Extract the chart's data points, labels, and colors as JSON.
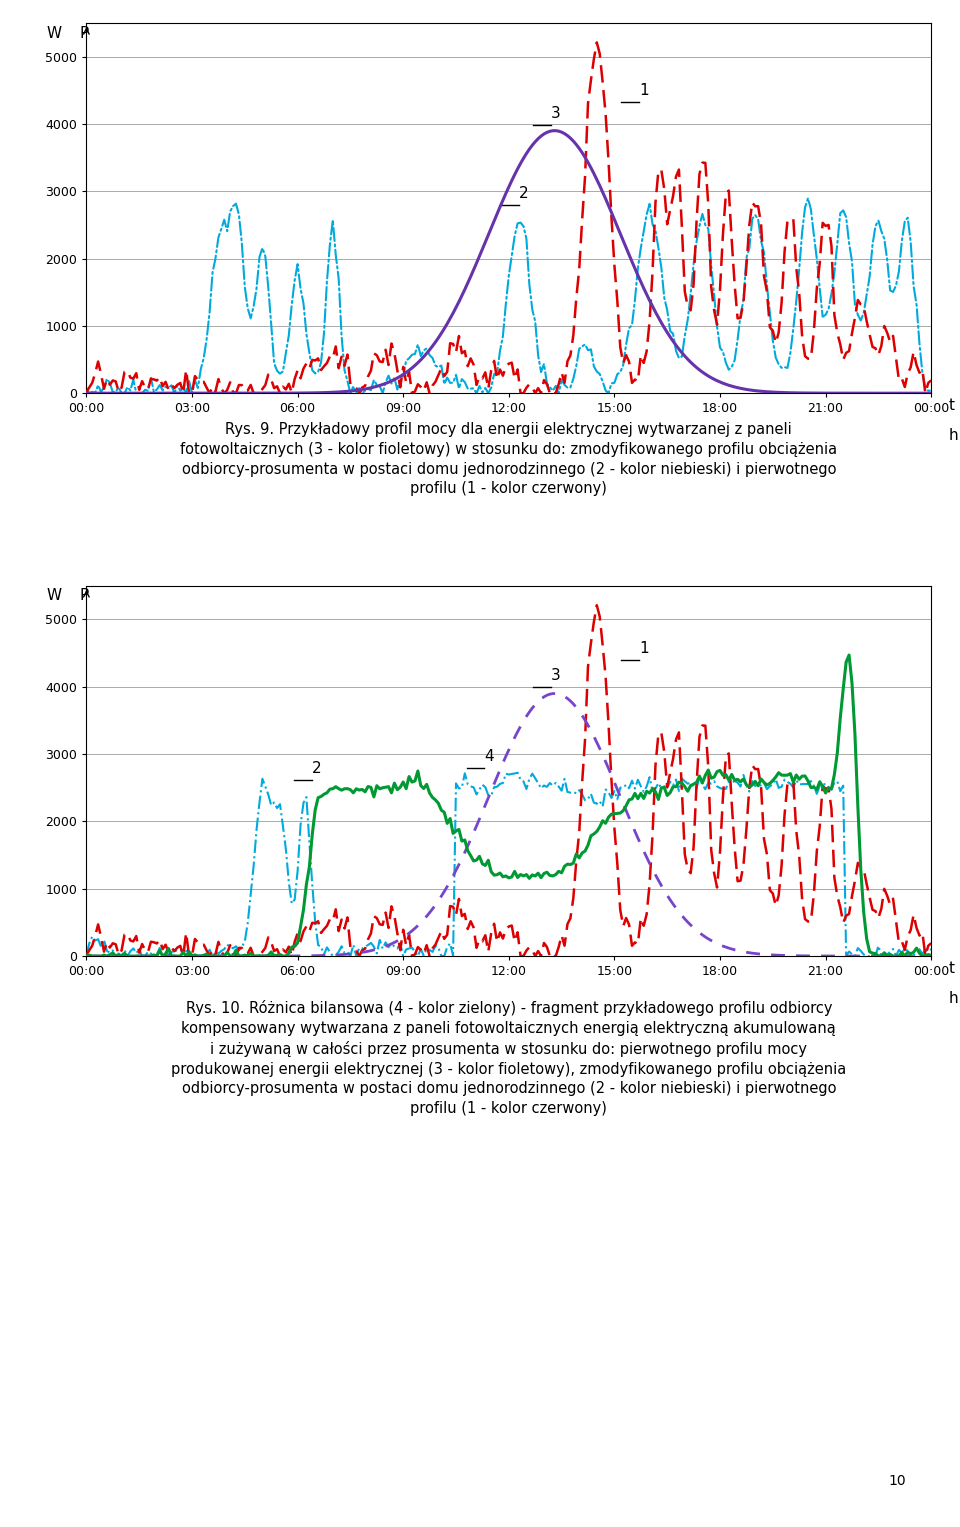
{
  "chart1": {
    "ylim": [
      0,
      5500
    ],
    "yticks": [
      0,
      1000,
      2000,
      3000,
      4000,
      5000
    ],
    "xtick_labels": [
      "00:00",
      "03:00",
      "06:00",
      "09:00",
      "12:00",
      "15:00",
      "18:00",
      "21:00",
      "00:00"
    ],
    "line1_color": "#dd0000",
    "line2_color": "#00aadd",
    "line3_color": "#6633aa"
  },
  "chart2": {
    "ylim": [
      0,
      5500
    ],
    "yticks": [
      0,
      1000,
      2000,
      3000,
      4000,
      5000
    ],
    "xtick_labels": [
      "00:00",
      "03:00",
      "06:00",
      "09:00",
      "12:00",
      "15:00",
      "18:00",
      "21:00",
      "00:00"
    ],
    "line1_color": "#dd0000",
    "line2_color": "#00aadd",
    "line3_color": "#7744cc",
    "line4_color": "#009933"
  },
  "caption1": "Rys. 9. Przykładowy profil mocy dla energii elektrycznej wytwarzanej z paneli\nfotowoltaicznych (3 - kolor fioletowy) w stosunku do: zmodyfikowanego profilu obciążenia\nodbiorcy-prosumenta w postaci domu jednorodzinnego (2 - kolor niebieski) i pierwotnego\nprofilu (1 - kolor czerwony)",
  "caption2": "Rys. 10. Różnica bilansowa (4 - kolor zielony) - fragment przykładowego profilu odbiorcy\nkompensowany wytwarzana z paneli fotowoltaicznych energią elektryczną akumulowaną\ni zużywaną w całości przez prosumenta w stosunku do: pierwotnego profilu mocy\nprodukowanej energii elektrycznej (3 - kolor fioletowy), zmodyfikowanego profilu obciążenia\nodbiorcy-prosumenta w postaci domu jednorodzinnego (2 - kolor niebieski) i pierwotnego\nprofilu (1 - kolor czerwony)",
  "page_number": "10"
}
